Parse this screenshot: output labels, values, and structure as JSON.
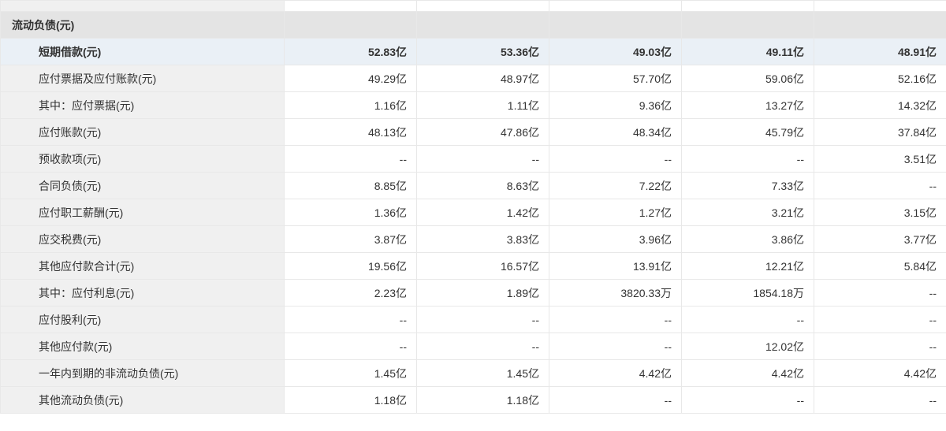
{
  "table": {
    "section_title": "流动负债(元)",
    "columns_count": 5,
    "colors": {
      "label_bg": "#f0f0f0",
      "section_bg": "#e4e4e4",
      "highlight_bg": "#eaf0f6",
      "border": "#e8e8e8",
      "text": "#333333"
    },
    "rows": [
      {
        "label": "短期借款(元)",
        "indent": 1,
        "highlight": true,
        "values": [
          "52.83亿",
          "53.36亿",
          "49.03亿",
          "49.11亿",
          "48.91亿"
        ]
      },
      {
        "label": "应付票据及应付账款(元)",
        "indent": 1,
        "highlight": false,
        "values": [
          "49.29亿",
          "48.97亿",
          "57.70亿",
          "59.06亿",
          "52.16亿"
        ]
      },
      {
        "label": "其中：应付票据(元)",
        "indent": 1,
        "highlight": false,
        "values": [
          "1.16亿",
          "1.11亿",
          "9.36亿",
          "13.27亿",
          "14.32亿"
        ]
      },
      {
        "label": "应付账款(元)",
        "indent": 1,
        "highlight": false,
        "values": [
          "48.13亿",
          "47.86亿",
          "48.34亿",
          "45.79亿",
          "37.84亿"
        ]
      },
      {
        "label": "预收款项(元)",
        "indent": 1,
        "highlight": false,
        "values": [
          "--",
          "--",
          "--",
          "--",
          "3.51亿"
        ]
      },
      {
        "label": "合同负债(元)",
        "indent": 1,
        "highlight": false,
        "values": [
          "8.85亿",
          "8.63亿",
          "7.22亿",
          "7.33亿",
          "--"
        ]
      },
      {
        "label": "应付职工薪酬(元)",
        "indent": 1,
        "highlight": false,
        "values": [
          "1.36亿",
          "1.42亿",
          "1.27亿",
          "3.21亿",
          "3.15亿"
        ]
      },
      {
        "label": "应交税费(元)",
        "indent": 1,
        "highlight": false,
        "values": [
          "3.87亿",
          "3.83亿",
          "3.96亿",
          "3.86亿",
          "3.77亿"
        ]
      },
      {
        "label": "其他应付款合计(元)",
        "indent": 1,
        "highlight": false,
        "values": [
          "19.56亿",
          "16.57亿",
          "13.91亿",
          "12.21亿",
          "5.84亿"
        ]
      },
      {
        "label": "其中：应付利息(元)",
        "indent": 1,
        "highlight": false,
        "values": [
          "2.23亿",
          "1.89亿",
          "3820.33万",
          "1854.18万",
          "--"
        ]
      },
      {
        "label": "应付股利(元)",
        "indent": 1,
        "highlight": false,
        "values": [
          "--",
          "--",
          "--",
          "--",
          "--"
        ]
      },
      {
        "label": "其他应付款(元)",
        "indent": 1,
        "highlight": false,
        "values": [
          "--",
          "--",
          "--",
          "12.02亿",
          "--"
        ]
      },
      {
        "label": "一年内到期的非流动负债(元)",
        "indent": 1,
        "highlight": false,
        "values": [
          "1.45亿",
          "1.45亿",
          "4.42亿",
          "4.42亿",
          "4.42亿"
        ]
      },
      {
        "label": "其他流动负债(元)",
        "indent": 1,
        "highlight": false,
        "values": [
          "1.18亿",
          "1.18亿",
          "--",
          "--",
          "--"
        ]
      }
    ]
  }
}
